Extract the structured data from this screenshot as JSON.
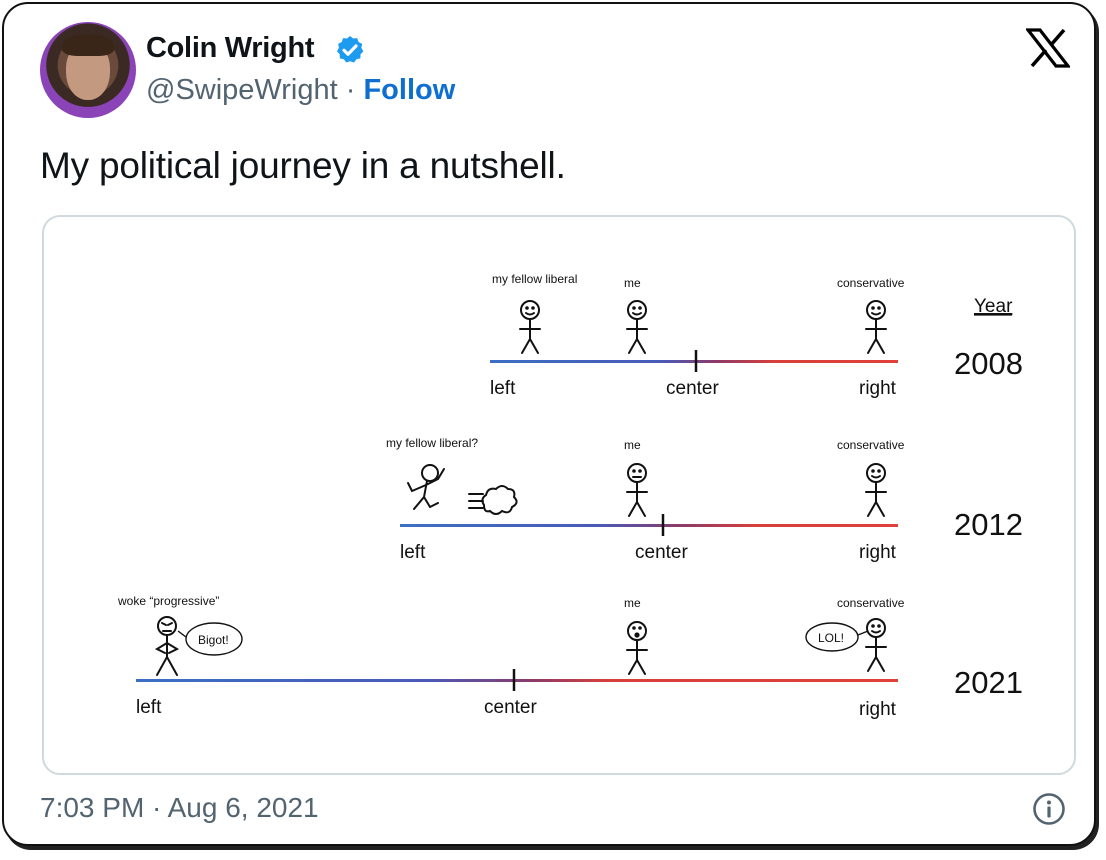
{
  "author": {
    "name": "Colin Wright",
    "handle": "@SwipeWright",
    "separator": " · ",
    "follow_label": "Follow",
    "verified": true
  },
  "brand": {
    "icon": "x-logo-icon"
  },
  "tweet": {
    "text": "My political journey in a nutshell.",
    "timestamp": "7:03 PM · Aug 6, 2021"
  },
  "colors": {
    "accent": "#0f6fd1",
    "verified_badge": "#1d9bf0",
    "left": "#3b6fc4",
    "right": "#e0413a"
  },
  "image": {
    "year_header": "Year",
    "rows": [
      {
        "year": "2008",
        "left_label": "left",
        "center_label": "center",
        "right_label": "right",
        "liberal_caption": "my fellow liberal",
        "me_caption": "me",
        "conservative_caption": "conservative"
      },
      {
        "year": "2012",
        "left_label": "left",
        "center_label": "center",
        "right_label": "right",
        "liberal_caption": "my fellow liberal?",
        "me_caption": "me",
        "conservative_caption": "conservative"
      },
      {
        "year": "2021",
        "left_label": "left",
        "center_label": "center",
        "right_label": "right",
        "liberal_caption": "woke “progressive”",
        "me_caption": "me",
        "conservative_caption": "conservative",
        "liberal_speech": "Bigot!",
        "conservative_speech": "LOL!"
      }
    ]
  }
}
